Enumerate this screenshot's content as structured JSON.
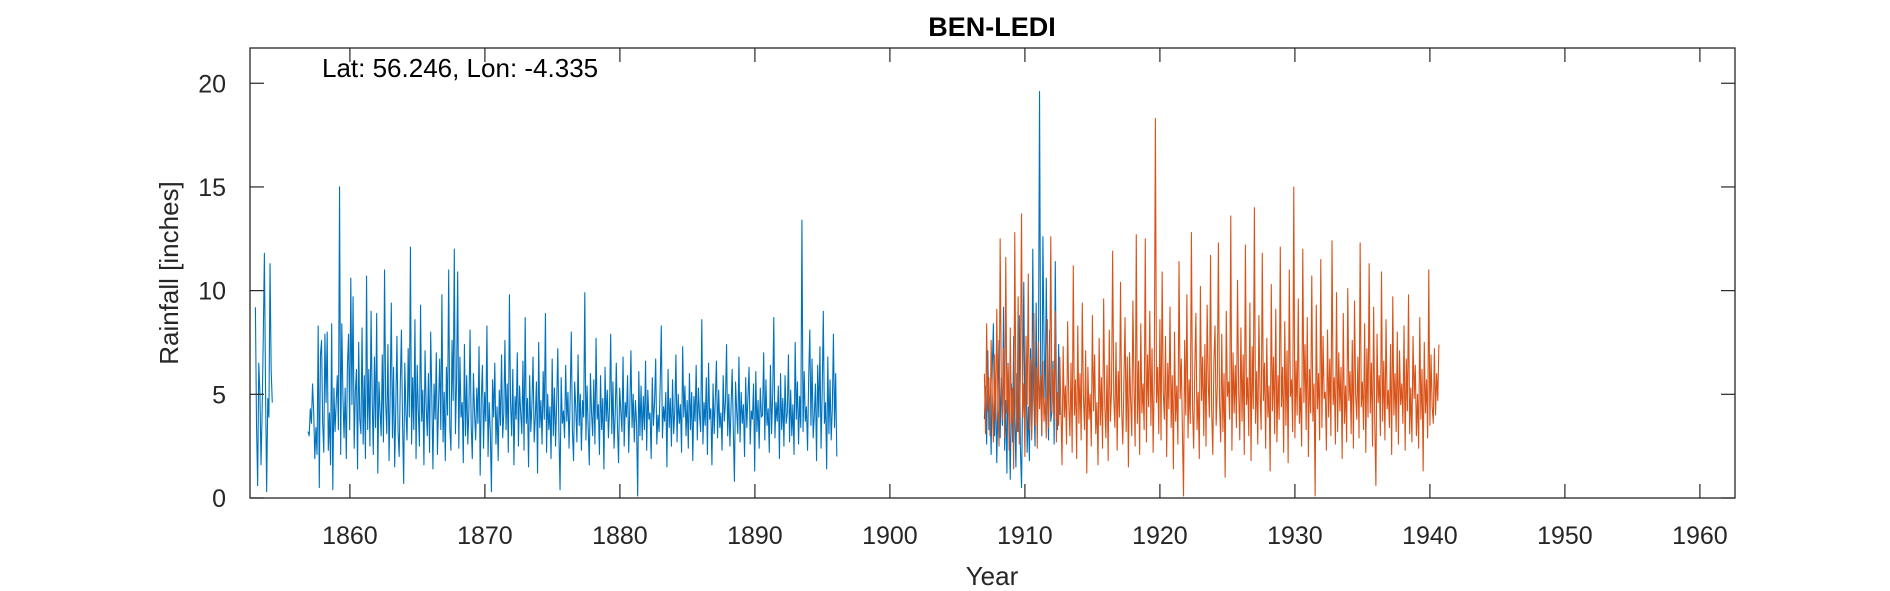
{
  "chart_data": {
    "type": "line",
    "title": "BEN-LEDI",
    "xlabel": "Year",
    "ylabel": "Rainfall [inches]",
    "annotation": "Lat: 56.246, Lon: -4.335",
    "xlim": [
      1852.6,
      1962.6
    ],
    "ylim": [
      0,
      21.7
    ],
    "xticks": [
      1860,
      1870,
      1880,
      1890,
      1900,
      1910,
      1920,
      1930,
      1940,
      1950,
      1960
    ],
    "yticks": [
      0,
      5,
      10,
      15,
      20
    ],
    "grid": false,
    "legend": "none",
    "series": [
      {
        "color": "#0072BD",
        "frequency": "monthly",
        "segments": [
          {
            "start": 1853.0,
            "values": [
              9.2,
              3.5,
              0.6,
              6.5,
              5.1,
              1.6,
              4.2,
              7.8,
              11.8,
              5.3,
              0.3,
              4.8,
              3.9,
              11.3,
              6.2,
              4.6
            ]
          },
          {
            "start": 1856.9,
            "values": [
              3.2,
              3.0,
              4.3,
              3.6,
              5.5,
              4.2,
              1.9,
              3.4,
              2.1,
              8.3,
              0.5,
              6.9,
              7.6,
              3.6,
              2.2,
              7.9,
              4.6,
              8.0,
              2.3,
              4.1,
              1.6,
              8.4,
              0.4,
              5.3,
              3.2,
              4.6,
              5.9,
              3.3,
              15.0,
              2.1,
              8.4,
              4.9,
              2.9,
              5.3,
              1.9,
              6.4,
              7.9,
              3.3,
              10.6,
              4.5,
              9.7,
              2.4,
              5.1,
              6.2,
              1.4,
              7.5,
              3.8,
              3.1,
              8.2,
              2.6,
              5.9,
              1.9,
              10.7,
              3.3,
              6.2,
              2.5,
              9.0,
              4.8,
              2.1,
              6.8,
              3.4,
              8.9,
              1.2,
              5.6,
              4.2,
              3.0,
              6.9,
              2.7,
              11.0,
              4.6,
              3.1,
              7.4,
              1.8,
              5.0,
              9.4,
              2.9,
              6.3,
              1.5,
              4.4,
              7.8,
              3.2,
              2.0,
              5.5,
              8.1,
              3.6,
              0.7,
              6.5,
              4.1,
              2.8,
              7.2,
              3.9,
              12.1,
              2.6,
              5.8,
              3.3,
              8.6,
              1.9,
              6.4,
              4.2,
              2.5,
              9.3,
              3.7,
              5.2,
              1.6,
              7.1,
              4.4,
              3.0,
              6.0,
              2.2,
              8.0,
              4.9,
              1.4,
              5.5,
              3.8,
              7.0,
              2.1,
              4.5,
              6.7,
              3.3,
              9.8,
              2.7,
              5.1,
              1.8,
              6.3,
              4.0,
              11.0,
              3.4,
              2.3,
              7.6,
              4.7,
              12.0,
              3.1,
              5.6,
              10.9,
              2.4,
              6.8,
              3.9,
              4.6,
              1.7,
              7.4,
              3.0,
              5.9,
              2.6,
              4.3,
              8.1,
              3.5,
              1.9,
              6.0,
              4.1,
              2.8,
              5.3,
              3.6,
              7.3,
              1.1,
              4.8,
              6.4,
              2.4,
              5.1,
              3.7,
              8.3,
              2.0,
              4.6,
              3.2,
              0.3,
              5.7,
              3.9,
              6.5,
              2.6,
              4.4,
              1.8,
              5.2,
              3.5,
              6.9,
              2.9,
              4.1,
              7.6,
              3.3,
              5.5,
              2.2,
              9.8,
              4.6,
              3.0,
              6.2,
              1.6,
              4.9,
              3.8,
              7.0,
              2.5,
              5.4,
              4.1,
              3.1,
              6.6,
              2.3,
              8.7,
              3.6,
              4.8,
              1.5,
              5.9,
              3.2,
              4.5,
              6.8,
              2.7,
              3.9,
              5.6,
              1.2,
              7.5,
              3.4,
              4.7,
              2.6,
              6.1,
              3.8,
              8.9,
              2.2,
              5.0,
              3.3,
              4.4,
              1.9,
              6.7,
              3.0,
              5.3,
              2.5,
              4.6,
              7.2,
              3.1,
              0.4,
              5.8,
              3.6,
              4.2,
              2.9,
              6.4,
              3.7,
              5.1,
              2.4,
              4.9,
              8.0,
              3.2,
              1.8,
              5.6,
              4.3,
              2.7,
              6.9,
              3.5,
              5.0,
              2.3,
              4.7,
              3.9,
              9.9,
              2.8,
              5.4,
              3.4,
              1.6,
              6.0,
              4.1,
              3.0,
              5.7,
              2.6,
              7.7,
              3.8,
              4.5,
              2.1,
              5.9,
              3.3,
              4.8,
              1.4,
              6.3,
              3.7,
              5.2,
              2.9,
              4.4,
              7.9,
              3.1,
              5.6,
              2.4,
              4.0,
              6.5,
              3.5,
              1.7,
              5.3,
              4.2,
              3.2,
              6.8,
              2.5,
              4.6,
              3.9,
              5.9,
              2.2,
              4.3,
              7.1,
              3.4,
              5.0,
              2.7,
              4.7,
              3.6,
              0.1,
              6.1,
              3.0,
              5.4,
              2.8,
              4.9,
              3.3,
              6.6,
              2.3,
              5.2,
              3.8,
              4.1,
              1.9,
              5.8,
              3.5,
              4.6,
              6.7,
              2.6,
              4.0,
              3.2,
              5.5,
              8.3,
              2.9,
              4.4,
              3.7,
              5.1,
              1.5,
              6.2,
              3.4,
              4.8,
              2.5,
              5.7,
              3.1,
              4.2,
              6.9,
              2.7,
              5.0,
              3.6,
              4.5,
              2.2,
              7.3,
              3.9,
              5.4,
              3.0,
              4.7,
              2.4,
              6.0,
              3.3,
              5.1,
              1.8,
              4.9,
              3.7,
              6.4,
              2.8,
              5.3,
              4.0,
              3.2,
              8.6,
              2.6,
              4.6,
              3.5,
              5.8,
              2.1,
              6.5,
              3.8,
              4.3,
              1.6,
              5.5,
              3.1,
              4.8,
              6.6,
              2.9,
              5.2,
              3.4,
              4.1,
              2.3,
              5.9,
              3.7,
              4.6,
              7.4,
              3.0,
              5.0,
              2.5,
              4.4,
              6.2,
              3.3,
              0.8,
              5.6,
              4.2,
              3.1,
              6.8,
              2.7,
              5.1,
              3.6,
              4.5,
              2.0,
              5.8,
              3.4,
              4.9,
              6.3,
              2.6,
              4.2,
              3.8,
              5.5,
              1.3,
              6.1,
              3.2,
              4.7,
              2.4,
              5.3,
              3.9,
              4.0,
              7.0,
              2.8,
              5.7,
              3.5,
              4.3,
              2.2,
              6.4,
              3.1,
              5.0,
              8.7,
              2.9,
              4.6,
              3.7,
              5.4,
              1.9,
              6.0,
              3.3,
              4.8,
              2.5,
              5.9,
              3.6,
              4.1,
              6.9,
              2.7,
              5.2,
              3.0,
              4.5,
              2.1,
              7.5,
              3.8,
              5.6,
              2.6,
              4.9,
              3.4,
              13.4,
              3.2,
              6.1,
              3.7,
              4.4,
              2.3,
              5.8,
              8.1,
              3.5,
              6.7,
              2.9,
              4.0,
              5.5,
              1.8,
              6.4,
              3.9,
              7.3,
              2.4,
              5.0,
              9.0,
              3.6,
              4.6,
              1.4,
              6.8,
              3.1,
              5.7,
              2.8,
              4.3,
              7.9,
              3.4,
              6.0,
              2.0
            ]
          },
          {
            "start": 1907.0,
            "values": [
              3.8,
              5.4,
              2.6,
              7.1,
              3.3,
              4.9,
              2.1,
              6.3,
              8.4,
              3.0,
              5.2,
              1.7,
              4.6,
              7.6,
              2.9,
              5.8,
              3.5,
              9.2,
              2.3,
              4.7,
              1.2,
              6.5,
              3.9,
              0.9,
              5.5,
              2.7,
              7.8,
              4.1,
              1.5,
              6.0,
              3.2,
              8.8,
              2.4,
              0.5,
              5.1,
              10.4,
              3.6,
              6.7,
              2.2,
              4.4,
              1.8,
              7.2,
              3.1,
              12.0,
              4.8,
              2.5,
              9.4,
              3.4,
              5.9,
              19.6,
              6.2,
              3.0,
              12.6,
              7.5,
              4.5,
              10.6,
              5.3,
              2.8,
              8.1,
              3.7,
              4.2,
              6.6,
              2.6,
              11.4,
              5.0,
              3.3,
              7.4,
              4.0
            ]
          }
        ]
      },
      {
        "color": "#D95319",
        "frequency": "monthly",
        "start": 1907.0,
        "values": [
          6.0,
          3.1,
          8.4,
          4.2,
          5.8,
          3.0,
          7.6,
          4.9,
          2.7,
          6.9,
          3.7,
          9.1,
          4.4,
          2.5,
          12.5,
          5.6,
          3.8,
          7.2,
          2.9,
          11.6,
          4.1,
          6.4,
          2.3,
          8.2,
          3.6,
          5.3,
          1.4,
          12.8,
          4.7,
          3.2,
          9.7,
          2.6,
          6.1,
          13.7,
          3.9,
          5.5,
          2.0,
          7.8,
          4.5,
          10.8,
          3.3,
          6.7,
          2.8,
          5.2,
          8.9,
          3.5,
          6.3,
          2.4,
          7.5,
          4.3,
          5.9,
          3.1,
          6.6,
          3.7,
          4.8,
          2.9,
          8.6,
          3.4,
          5.6,
          12.6,
          4.1,
          6.2,
          3.8,
          9.0,
          2.7,
          5.1,
          3.5,
          6.8,
          4.4,
          1.6,
          7.3,
          3.9,
          5.4,
          2.6,
          8.5,
          4.6,
          3.0,
          6.5,
          2.2,
          11.2,
          4.0,
          5.7,
          1.9,
          8.3,
          3.6,
          6.0,
          2.8,
          9.4,
          4.9,
          3.3,
          7.1,
          1.2,
          6.3,
          3.8,
          5.0,
          2.5,
          8.8,
          4.2,
          6.9,
          3.1,
          4.6,
          1.6,
          7.7,
          3.5,
          5.8,
          2.4,
          9.6,
          4.5,
          2.9,
          6.4,
          1.8,
          8.1,
          3.7,
          5.2,
          11.9,
          4.8,
          3.4,
          7.5,
          2.3,
          6.1,
          3.9,
          10.4,
          4.3,
          2.6,
          5.6,
          8.7,
          3.2,
          6.8,
          1.5,
          7.0,
          4.7,
          3.0,
          9.5,
          5.3,
          2.5,
          12.7,
          3.6,
          6.6,
          2.1,
          8.4,
          4.1,
          5.5,
          3.3,
          12.5,
          2.7,
          6.9,
          4.4,
          9.0,
          3.5,
          7.2,
          2.2,
          5.8,
          18.3,
          4.6,
          6.3,
          3.1,
          8.6,
          2.8,
          10.9,
          5.1,
          3.8,
          7.8,
          2.0,
          6.5,
          4.3,
          9.2,
          3.4,
          5.9,
          1.4,
          8.0,
          3.7,
          5.4,
          2.6,
          11.4,
          4.8,
          6.7,
          3.2,
          0.1,
          7.6,
          4.0,
          9.8,
          2.9,
          5.7,
          3.6,
          12.8,
          4.4,
          2.4,
          6.2,
          8.9,
          3.3,
          5.1,
          1.9,
          10.2,
          4.7,
          6.8,
          3.0,
          7.4,
          2.5,
          9.3,
          5.5,
          3.9,
          11.7,
          4.2,
          2.1,
          6.6,
          8.3,
          3.5,
          5.3,
          12.3,
          4.6,
          2.7,
          7.9,
          3.2,
          6.0,
          1.0,
          9.0,
          4.9,
          5.6,
          3.8,
          13.6,
          2.3,
          7.0,
          4.1,
          6.4,
          3.4,
          10.5,
          5.2,
          2.8,
          8.2,
          3.7,
          6.9,
          2.1,
          12.2,
          4.5,
          5.8,
          3.0,
          9.4,
          1.8,
          7.3,
          4.3,
          14.0,
          3.6,
          6.1,
          2.6,
          8.8,
          5.0,
          3.3,
          11.8,
          4.7,
          6.5,
          2.4,
          7.7,
          3.9,
          5.4,
          1.3,
          10.3,
          4.2,
          6.8,
          3.1,
          9.1,
          2.7,
          5.9,
          3.8,
          12.1,
          4.4,
          6.3,
          2.2,
          8.5,
          3.5,
          7.1,
          1.7,
          11.0,
          4.9,
          5.7,
          3.2,
          15.0,
          2.9,
          6.6,
          4.0,
          9.6,
          3.6,
          5.3,
          2.5,
          12.0,
          4.6,
          7.4,
          3.3,
          8.7,
          2.0,
          6.2,
          4.1,
          10.7,
          3.7,
          5.5,
          0.1,
          9.3,
          4.3,
          6.0,
          2.8,
          11.5,
          3.4,
          7.8,
          4.8,
          5.1,
          2.3,
          8.1,
          3.9,
          6.7,
          3.0,
          12.4,
          4.5,
          5.8,
          2.6,
          9.9,
          3.2,
          7.0,
          4.2,
          6.3,
          1.9,
          8.9,
          3.6,
          5.4,
          2.7,
          10.1,
          4.7,
          6.1,
          3.1,
          7.6,
          2.4,
          9.5,
          5.0,
          3.8,
          6.8,
          2.9,
          12.3,
          4.4,
          5.6,
          3.3,
          8.4,
          2.2,
          7.2,
          3.9,
          11.3,
          4.1,
          6.5,
          2.5,
          9.2,
          3.5,
          0.6,
          7.9,
          4.6,
          5.9,
          3.0,
          10.9,
          3.7,
          6.6,
          2.8,
          8.6,
          4.3,
          5.2,
          3.4,
          7.4,
          2.1,
          9.7,
          4.0,
          6.0,
          3.2,
          8.0,
          2.6,
          7.1,
          4.5,
          5.5,
          3.6,
          8.3,
          2.3,
          6.7,
          4.2,
          9.8,
          3.1,
          5.3,
          2.7,
          7.8,
          4.8,
          6.4,
          3.0,
          5.0,
          2.4,
          8.7,
          3.8,
          6.2,
          1.3,
          7.5,
          4.1,
          5.7,
          2.9,
          11.0,
          3.5,
          6.9,
          4.4,
          3.6,
          7.2,
          4.0,
          6.0,
          4.7,
          7.4
        ]
      }
    ]
  }
}
